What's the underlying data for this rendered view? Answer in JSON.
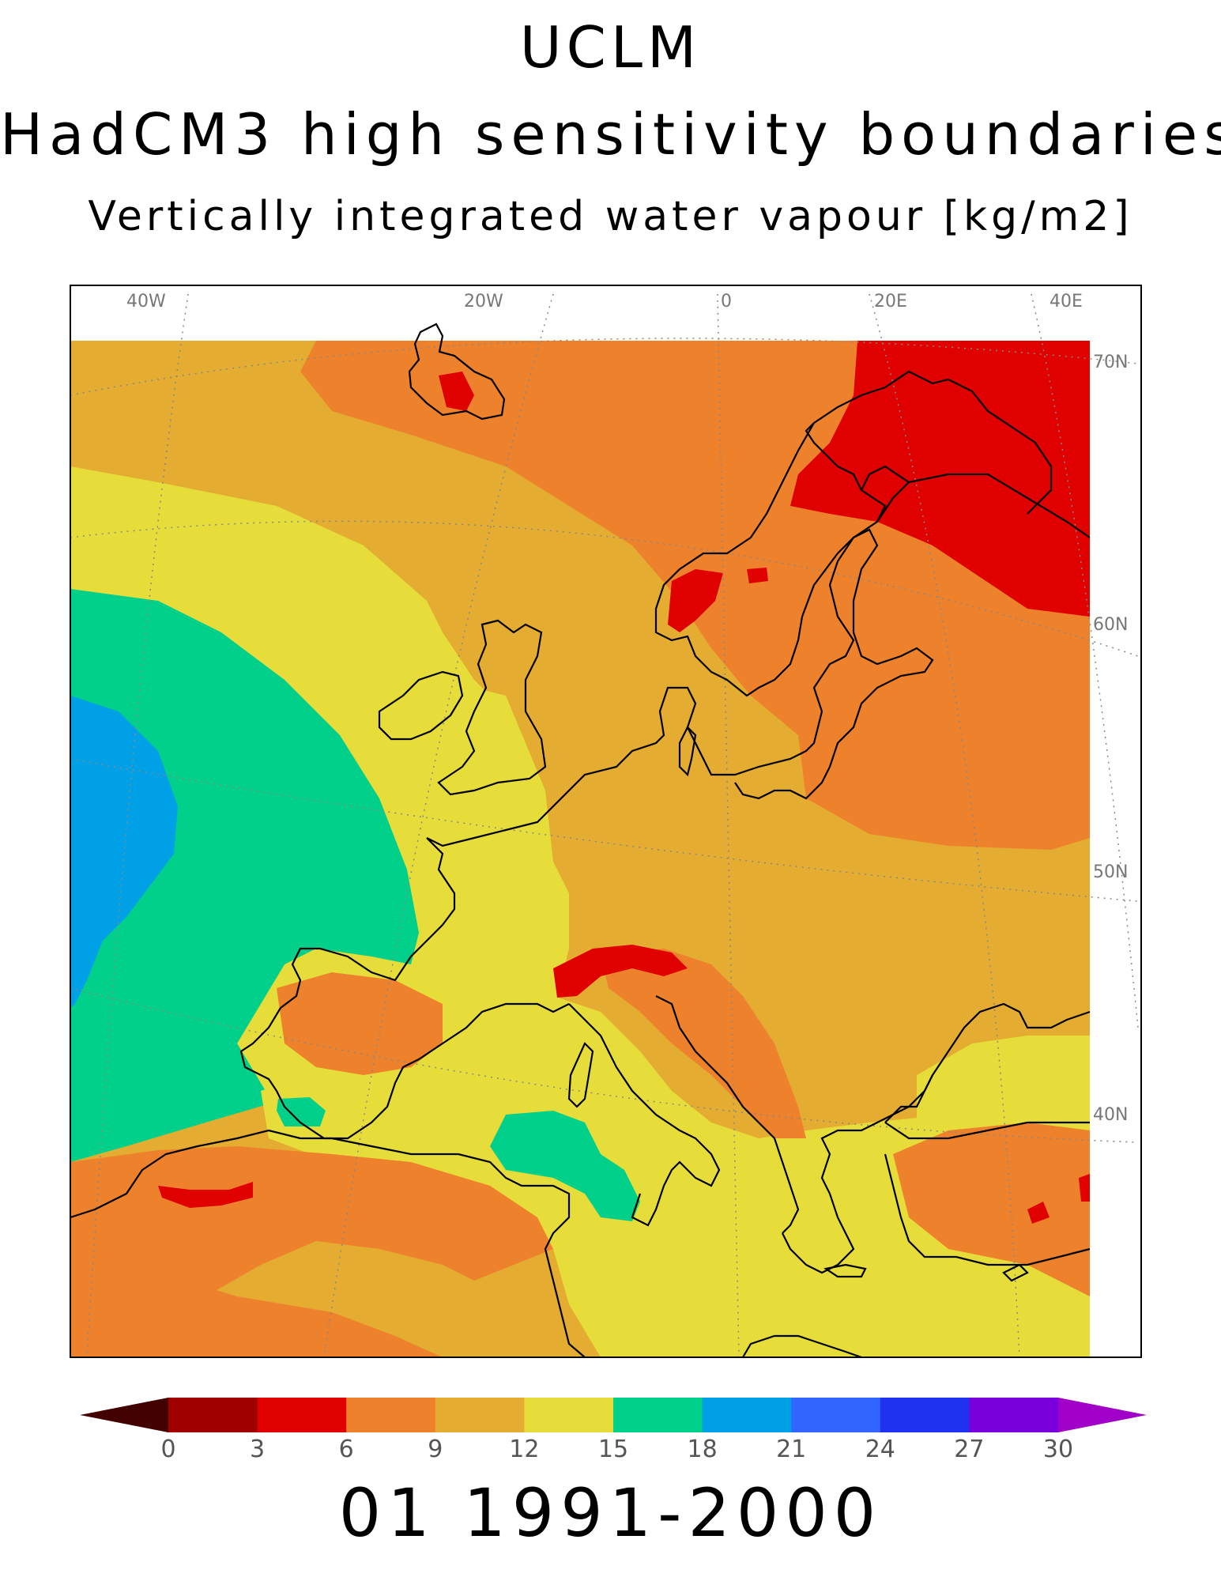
{
  "titles": {
    "line1": "UCLM",
    "line2": "HadCM3 high sensitivity boundaries",
    "line3": "Vertically integrated water vapour [kg/m2]"
  },
  "footer": "01 1991-2000",
  "map": {
    "longitude_labels": [
      "40W",
      "20W",
      "0",
      "20E",
      "40E"
    ],
    "latitude_labels": [
      "70N",
      "60N",
      "50N",
      "40N"
    ],
    "field_colors": {
      "dark_red": "#e00000",
      "orange": "#ee822c",
      "light_orange": "#e4ac30",
      "yellow": "#e6dd3a",
      "green": "#00d08a",
      "blue": "#00a0e6"
    }
  },
  "colorbar": {
    "tick_labels": [
      "0",
      "3",
      "6",
      "9",
      "12",
      "15",
      "18",
      "21",
      "24",
      "27",
      "30"
    ],
    "lower_extend_color": "#420000",
    "upper_extend_color": "#a000c8",
    "bins": [
      {
        "range": "0-3",
        "color": "#a00000"
      },
      {
        "range": "3-6",
        "color": "#e00000"
      },
      {
        "range": "6-9",
        "color": "#ee822c"
      },
      {
        "range": "9-12",
        "color": "#e4ac30"
      },
      {
        "range": "12-15",
        "color": "#e6dd3a"
      },
      {
        "range": "15-18",
        "color": "#00d08a"
      },
      {
        "range": "18-21",
        "color": "#00a0e6"
      },
      {
        "range": "21-24",
        "color": "#3264ff"
      },
      {
        "range": "24-27",
        "color": "#1e32f0"
      },
      {
        "range": "27-30",
        "color": "#7800dc"
      }
    ]
  }
}
